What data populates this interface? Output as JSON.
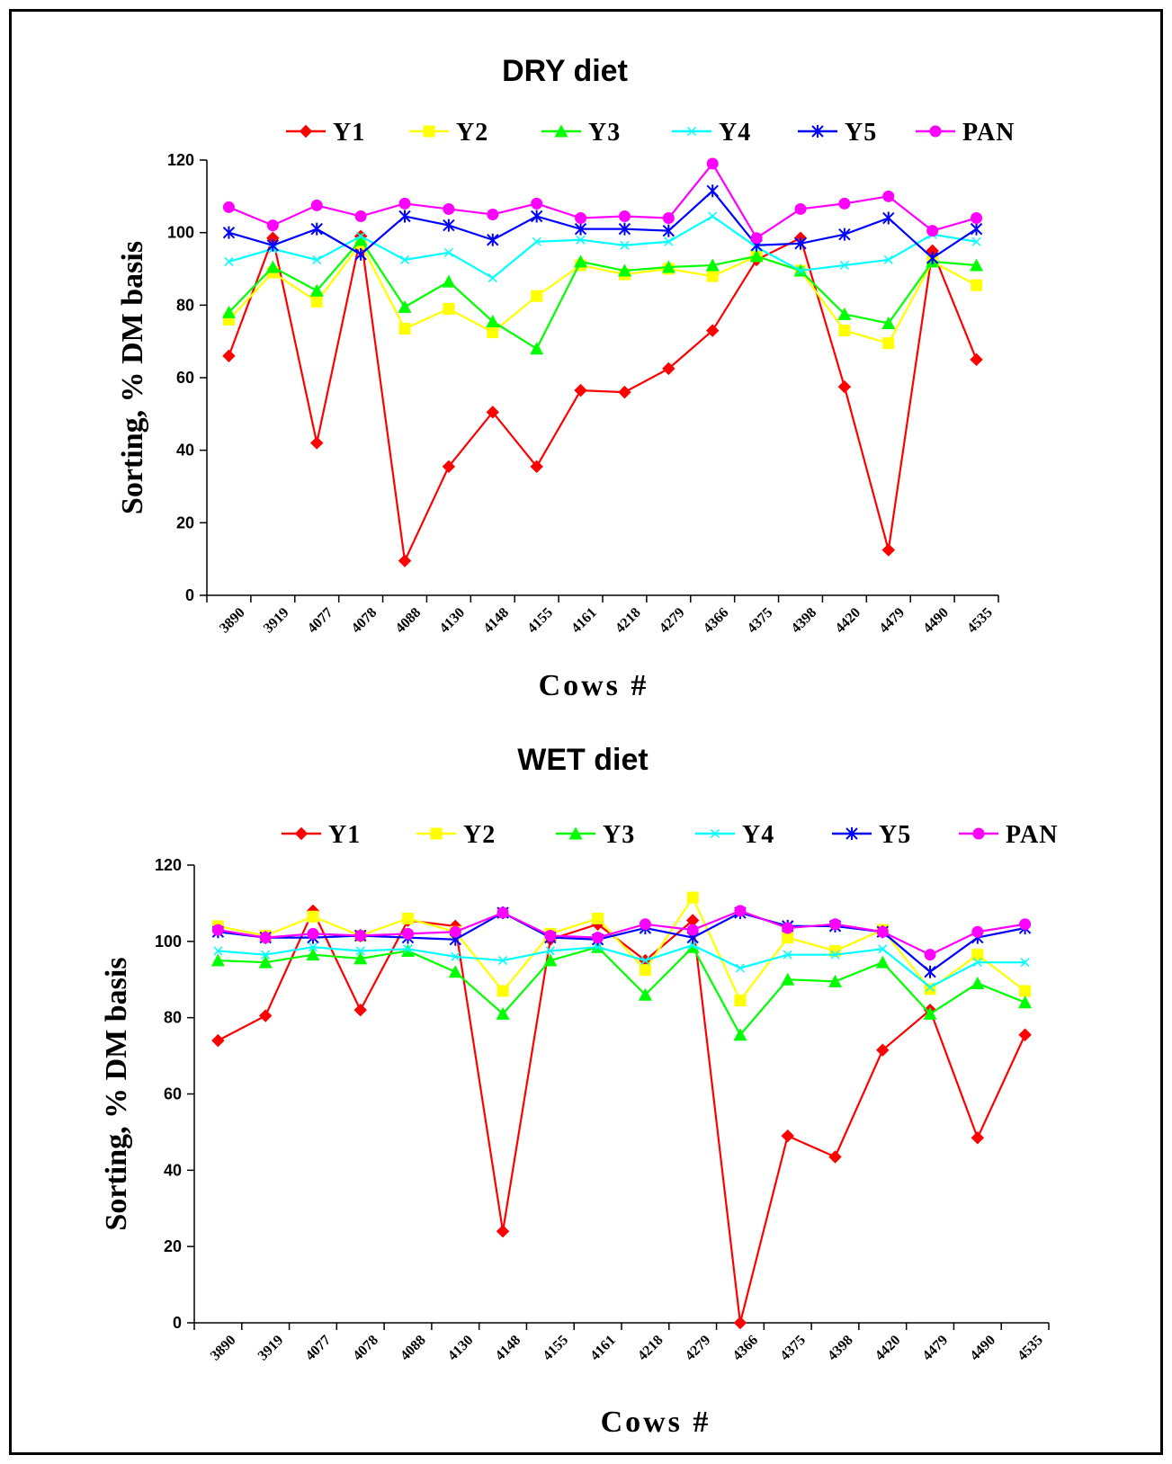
{
  "chart_data": [
    {
      "type": "line",
      "title": "DRY diet",
      "xlabel": "Cows #",
      "ylabel": "Sorting, % DM basis",
      "ylim": [
        0,
        120
      ],
      "yticks": [
        "0",
        "20",
        "40",
        "60",
        "80",
        "100",
        "120"
      ],
      "categories": [
        "3890",
        "3919",
        "4077",
        "4078",
        "4088",
        "4130",
        "4148",
        "4155",
        "4161",
        "4218",
        "4279",
        "4366",
        "4375",
        "4398",
        "4420",
        "4479",
        "4490",
        "4535"
      ],
      "legend_position": "top",
      "series": [
        {
          "name": "Y1",
          "color": "#ff0000",
          "marker": "diamond",
          "values": [
            66,
            98.5,
            42,
            99,
            9.5,
            35.5,
            50.5,
            35.5,
            56.5,
            56,
            62.5,
            73,
            92.5,
            98.5,
            57.5,
            12.5,
            95,
            65
          ]
        },
        {
          "name": "Y2",
          "color": "#ffff00",
          "marker": "square",
          "values": [
            76,
            89,
            81,
            97,
            73.5,
            79,
            72.5,
            82.5,
            91,
            88.5,
            90,
            88,
            93.5,
            89.5,
            73,
            69.5,
            92,
            85.5
          ]
        },
        {
          "name": "Y3",
          "color": "#00ff00",
          "marker": "triangle",
          "values": [
            78,
            90.5,
            84,
            98,
            79.5,
            86.5,
            75.5,
            68,
            92,
            89.5,
            90.5,
            91,
            93.5,
            89.5,
            77.5,
            75,
            92,
            91
          ]
        },
        {
          "name": "Y4",
          "color": "#00ffff",
          "marker": "x",
          "values": [
            92,
            95.5,
            92.5,
            99,
            92.5,
            94.5,
            87.5,
            97.5,
            98,
            96.5,
            97.5,
            104.5,
            96,
            89.5,
            91,
            92.5,
            99.5,
            97.5
          ]
        },
        {
          "name": "Y5",
          "color": "#0000ff",
          "marker": "asterisk",
          "values": [
            100,
            96.5,
            101,
            94,
            104.5,
            102,
            98,
            104.5,
            101,
            101,
            100.5,
            111.5,
            96.5,
            97,
            99.5,
            104,
            93,
            101
          ]
        },
        {
          "name": "PAN",
          "color": "#ff00ff",
          "marker": "circle",
          "values": [
            107,
            102,
            107.5,
            104.5,
            108,
            106.5,
            105,
            108,
            104,
            104.5,
            104,
            119,
            98.5,
            106.5,
            108,
            110,
            100.5,
            104
          ]
        }
      ]
    },
    {
      "type": "line",
      "title": "WET diet",
      "xlabel": "Cows #",
      "ylabel": "Sorting, % DM basis",
      "ylim": [
        0,
        120
      ],
      "yticks": [
        "0",
        "20",
        "40",
        "60",
        "80",
        "100",
        "120"
      ],
      "categories": [
        "3890",
        "3919",
        "4077",
        "4078",
        "4088",
        "4130",
        "4148",
        "4155",
        "4161",
        "4218",
        "4279",
        "4366",
        "4375",
        "4398",
        "4420",
        "4479",
        "4490",
        "4535"
      ],
      "legend_position": "top",
      "series": [
        {
          "name": "Y1",
          "color": "#ff0000",
          "marker": "diamond",
          "values": [
            74,
            80.5,
            108,
            82,
            105.5,
            104,
            24,
            100.5,
            104.5,
            95,
            105.5,
            0,
            49,
            43.5,
            71.5,
            82,
            48.5,
            75.5
          ]
        },
        {
          "name": "Y2",
          "color": "#ffff00",
          "marker": "square",
          "values": [
            104,
            101.5,
            106.5,
            101.5,
            106,
            102.5,
            87,
            102,
            106,
            92.5,
            111.5,
            84.5,
            101,
            97.5,
            103,
            87.5,
            96.5,
            87
          ]
        },
        {
          "name": "Y3",
          "color": "#00ff00",
          "marker": "triangle",
          "values": [
            95,
            94.5,
            96.5,
            95.5,
            97.5,
            92,
            81,
            95,
            98.5,
            86,
            98.5,
            75.5,
            90,
            89.5,
            94.5,
            81,
            89,
            84
          ]
        },
        {
          "name": "Y4",
          "color": "#00ffff",
          "marker": "x",
          "values": [
            97.5,
            96.5,
            98.5,
            97.5,
            98,
            96,
            95,
            97.5,
            98.5,
            95,
            99,
            93,
            96.5,
            96.5,
            98,
            88,
            94.5,
            94.5
          ]
        },
        {
          "name": "Y5",
          "color": "#0000ff",
          "marker": "asterisk",
          "values": [
            102.5,
            101,
            101,
            101.5,
            101,
            100.5,
            107.5,
            101,
            100.5,
            103.5,
            101,
            107.5,
            104,
            104,
            102.5,
            92,
            101,
            103.5
          ]
        },
        {
          "name": "PAN",
          "color": "#ff00ff",
          "marker": "circle",
          "values": [
            103,
            101,
            102,
            101.5,
            102,
            102.5,
            107.5,
            101.5,
            101,
            104.5,
            103,
            108,
            103.5,
            104.5,
            102.5,
            96.5,
            102.5,
            104.5
          ]
        }
      ]
    }
  ]
}
